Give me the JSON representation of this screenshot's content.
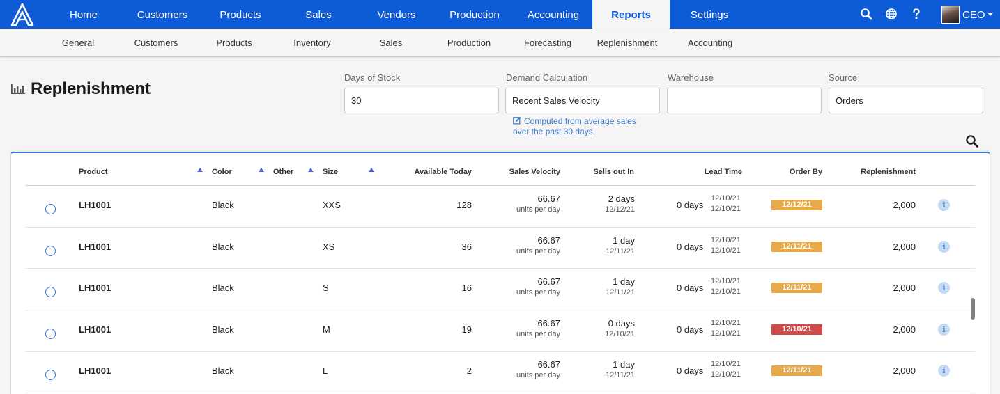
{
  "topnav": {
    "items": [
      "Home",
      "Customers",
      "Products",
      "Sales",
      "Vendors",
      "Production",
      "Accounting",
      "Reports",
      "Settings"
    ],
    "active": "Reports",
    "user_label": "CEO"
  },
  "subnav": {
    "items": [
      "General",
      "Customers",
      "Products",
      "Inventory",
      "Sales",
      "Production",
      "Forecasting",
      "Replenishment",
      "Accounting"
    ]
  },
  "page": {
    "title": "Replenishment"
  },
  "filters": {
    "days_label": "Days of Stock",
    "days_value": "30",
    "demand_label": "Demand Calculation",
    "demand_value": "Recent Sales Velocity",
    "demand_hint": "Computed from average sales over the past 30 days.",
    "warehouse_label": "Warehouse",
    "warehouse_value": "",
    "source_label": "Source",
    "source_value": "Orders"
  },
  "table": {
    "headers": [
      "Product",
      "Color",
      "Other",
      "Size",
      "Available Today",
      "Sales Velocity",
      "Sells out In",
      "Lead Time",
      "Order By",
      "Replenishment"
    ],
    "rows": [
      {
        "product": "LH1001",
        "color": "Black",
        "size": "XXS",
        "available": "128",
        "velocity": "66.67",
        "velocity_unit": "units per day",
        "sells_out": "2 days",
        "sells_out_date": "12/12/21",
        "lead_time": "0 days",
        "lead_date_1": "12/10/21",
        "lead_date_2": "12/10/21",
        "order_by": "12/12/21",
        "order_status": "orange",
        "replenishment": "2,000"
      },
      {
        "product": "LH1001",
        "color": "Black",
        "size": "XS",
        "available": "36",
        "velocity": "66.67",
        "velocity_unit": "units per day",
        "sells_out": "1 day",
        "sells_out_date": "12/11/21",
        "lead_time": "0 days",
        "lead_date_1": "12/10/21",
        "lead_date_2": "12/10/21",
        "order_by": "12/11/21",
        "order_status": "orange",
        "replenishment": "2,000"
      },
      {
        "product": "LH1001",
        "color": "Black",
        "size": "S",
        "available": "16",
        "velocity": "66.67",
        "velocity_unit": "units per day",
        "sells_out": "1 day",
        "sells_out_date": "12/11/21",
        "lead_time": "0 days",
        "lead_date_1": "12/10/21",
        "lead_date_2": "12/10/21",
        "order_by": "12/11/21",
        "order_status": "orange",
        "replenishment": "2,000"
      },
      {
        "product": "LH1001",
        "color": "Black",
        "size": "M",
        "available": "19",
        "velocity": "66.67",
        "velocity_unit": "units per day",
        "sells_out": "0 days",
        "sells_out_date": "12/10/21",
        "lead_time": "0 days",
        "lead_date_1": "12/10/21",
        "lead_date_2": "12/10/21",
        "order_by": "12/10/21",
        "order_status": "red",
        "replenishment": "2,000"
      },
      {
        "product": "LH1001",
        "color": "Black",
        "size": "L",
        "available": "2",
        "velocity": "66.67",
        "velocity_unit": "units per day",
        "sells_out": "1 day",
        "sells_out_date": "12/11/21",
        "lead_time": "0 days",
        "lead_date_1": "12/10/21",
        "lead_date_2": "12/10/21",
        "order_by": "12/11/21",
        "order_status": "orange",
        "replenishment": "2,000"
      }
    ]
  },
  "colors": {
    "primary": "#0e5bd8",
    "badge_orange": "#e8a94a",
    "badge_red": "#d04a4a",
    "info_bg": "#c4daf3"
  },
  "icons": {
    "logo": "logo-icon",
    "nav_search": "search-icon",
    "nav_globe": "globe-icon",
    "nav_help": "help-icon",
    "title": "bar-chart-icon",
    "hint": "edit-icon",
    "table_search": "search-icon",
    "row_info": "info-icon"
  }
}
